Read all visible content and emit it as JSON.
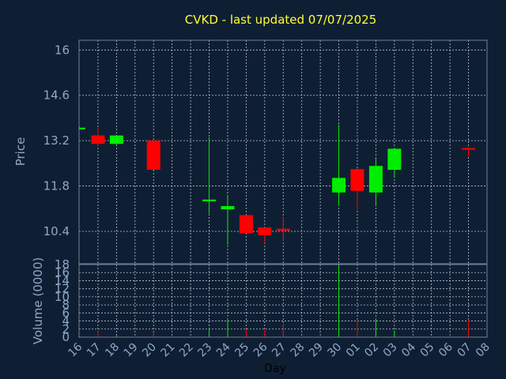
{
  "chart_data": [
    {
      "type": "candlestick",
      "title": "CVKD - last updated 07/07/2025",
      "ylabel": "Price",
      "ylim": [
        9.4,
        16.3
      ],
      "yticks": [
        16,
        14.6,
        13.2,
        11.8,
        10.4
      ],
      "grid": true,
      "colors": {
        "up": "#00ee00",
        "down": "#ff0000"
      },
      "candles": [
        {
          "day": "16",
          "open": 13.6,
          "high": 13.63,
          "low": 13.57,
          "close": 13.6
        },
        {
          "day": "17",
          "open": 13.36,
          "high": 13.6,
          "low": 13.05,
          "close": 13.1
        },
        {
          "day": "18",
          "open": 13.1,
          "high": 13.38,
          "low": 13.05,
          "close": 13.36
        },
        {
          "day": "20",
          "open": 13.2,
          "high": 13.2,
          "low": 12.3,
          "close": 12.3
        },
        {
          "day": "23",
          "open": 11.38,
          "high": 13.3,
          "low": 10.95,
          "close": 11.38
        },
        {
          "day": "24",
          "open": 11.08,
          "high": 11.48,
          "low": 9.98,
          "close": 11.18
        },
        {
          "day": "25",
          "open": 10.9,
          "high": 10.9,
          "low": 10.34,
          "close": 10.34
        },
        {
          "day": "26",
          "open": 10.52,
          "high": 10.52,
          "low": 10.04,
          "close": 10.28
        },
        {
          "day": "27",
          "open": 10.48,
          "high": 10.85,
          "low": 10.1,
          "close": 10.42
        },
        {
          "day": "30",
          "open": 11.6,
          "high": 13.7,
          "low": 11.18,
          "close": 12.05
        },
        {
          "day": "01",
          "open": 12.32,
          "high": 12.35,
          "low": 11.05,
          "close": 11.65
        },
        {
          "day": "02",
          "open": 11.6,
          "high": 12.65,
          "low": 11.2,
          "close": 12.42
        },
        {
          "day": "03",
          "open": 12.3,
          "high": 12.98,
          "low": 12.05,
          "close": 12.95
        },
        {
          "day": "07",
          "open": 12.97,
          "high": 13.0,
          "low": 12.7,
          "close": 12.93
        }
      ]
    },
    {
      "type": "bar",
      "ylabel": "Volume (0000)",
      "xlabel": "Day",
      "ylim": [
        0,
        18
      ],
      "yticks": [
        0,
        2,
        4,
        6,
        8,
        10,
        12,
        14,
        16,
        18
      ],
      "grid": true,
      "categories": [
        "16",
        "17",
        "18",
        "19",
        "20",
        "21",
        "22",
        "23",
        "24",
        "25",
        "26",
        "27",
        "28",
        "29",
        "30",
        "01",
        "02",
        "03",
        "04",
        "05",
        "06",
        "07",
        "08"
      ],
      "values": [
        0.2,
        1.5,
        0.3,
        0,
        1.3,
        0,
        0,
        2.2,
        4.7,
        2.0,
        1.8,
        3.2,
        0,
        0,
        18,
        4.0,
        4.7,
        1.6,
        0,
        0,
        0,
        4.2,
        0
      ],
      "value_colors": [
        "#00ee00",
        "#ff0000",
        "#00ee00",
        "#ff0000",
        "#ff0000",
        "#ff0000",
        "#ff0000",
        "#00ee00",
        "#00ee00",
        "#ff0000",
        "#ff0000",
        "#ff0000",
        "#ff0000",
        "#ff0000",
        "#00ee00",
        "#ff0000",
        "#00ee00",
        "#00ee00",
        "#ff0000",
        "#ff0000",
        "#ff0000",
        "#ff0000",
        "#ff0000"
      ]
    }
  ]
}
